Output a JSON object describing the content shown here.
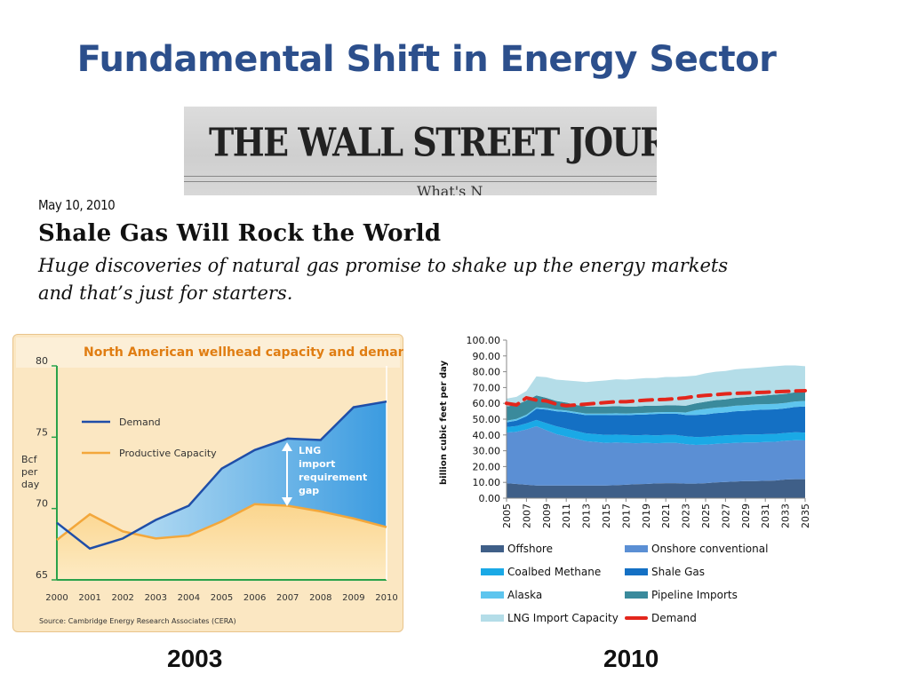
{
  "slide": {
    "title": "Fundamental Shift in Energy Sector"
  },
  "masthead": {
    "name": "THE WALL STREET JOURNAL.",
    "sub": "What's N"
  },
  "article": {
    "date": "May 10, 2010",
    "headline": "Shale Gas Will Rock the World",
    "deck": "Huge discoveries of natural gas promise to shake up the energy markets and that’s just for starters."
  },
  "captions": {
    "left": "2003",
    "right": "2010"
  },
  "colors": {
    "title": "#2c4f8c",
    "demand_2003": "#1f4ea8",
    "capacity_2003": "#f3a73b",
    "gap_fill": "#3b9be0",
    "offshore": "#3f5f88",
    "onshore": "#5b8fd4",
    "coalbed": "#1aa9e6",
    "shale": "#1470c4",
    "alaska": "#5ec5ee",
    "pipeline": "#3a8a9c",
    "lng": "#b4dde8",
    "demand_2010": "#e3261c"
  },
  "chart_data": [
    {
      "type": "area",
      "title": "North American wellhead capacity and demand",
      "x": [
        2000,
        2001,
        2002,
        2003,
        2004,
        2005,
        2006,
        2007,
        2008,
        2009,
        2010
      ],
      "x_ticks": [
        "2000",
        "2001",
        "2002",
        "2003",
        "2004",
        "2005",
        "2006",
        "2007",
        "2008",
        "2009",
        "2010"
      ],
      "y_ticks": [
        "65",
        "70",
        "75",
        "80"
      ],
      "ylim": [
        65,
        80
      ],
      "ylabel": "Bcf per day",
      "series": [
        {
          "name": "Demand",
          "values": [
            69.0,
            67.2,
            67.9,
            69.2,
            70.2,
            72.8,
            74.1,
            74.9,
            74.8,
            77.1,
            77.5
          ]
        },
        {
          "name": "Productive Capacity",
          "values": [
            67.8,
            69.6,
            68.4,
            67.9,
            68.1,
            69.1,
            70.3,
            70.2,
            69.8,
            69.3,
            68.7
          ]
        }
      ],
      "annotation": [
        "LNG",
        "import",
        "requirement",
        "gap"
      ],
      "source": "Source: Cambridge Energy Research Associates (CERA)"
    },
    {
      "type": "area",
      "stacked": true,
      "title": "",
      "ylabel": "billion cubic feet per day",
      "ylim": [
        0,
        100
      ],
      "y_ticks": [
        "0.00",
        "10.00",
        "20.00",
        "30.00",
        "40.00",
        "50.00",
        "60.00",
        "70.00",
        "80.00",
        "90.00",
        "100.00"
      ],
      "x_ticks": [
        "2005",
        "2007",
        "2009",
        "2011",
        "2013",
        "2015",
        "2017",
        "2019",
        "2021",
        "2023",
        "2025",
        "2027",
        "2029",
        "2031",
        "2033",
        "2035"
      ],
      "x": [
        2005,
        2006,
        2007,
        2008,
        2009,
        2010,
        2011,
        2012,
        2013,
        2014,
        2015,
        2016,
        2017,
        2018,
        2019,
        2020,
        2021,
        2022,
        2023,
        2024,
        2025,
        2026,
        2027,
        2028,
        2029,
        2030,
        2031,
        2032,
        2033,
        2034,
        2035
      ],
      "series": [
        {
          "name": "Offshore",
          "values": [
            9.5,
            9.0,
            8.5,
            8.0,
            8.0,
            8.0,
            8.0,
            8.0,
            8.0,
            8.0,
            8.0,
            8.2,
            8.5,
            8.8,
            9.0,
            9.3,
            9.5,
            9.5,
            9.2,
            9.2,
            9.5,
            10.0,
            10.2,
            10.5,
            10.8,
            10.8,
            11.0,
            11.2,
            11.8,
            12.0,
            12.0
          ]
        },
        {
          "name": "Onshore conventional",
          "values": [
            32.0,
            33.0,
            35.0,
            37.5,
            35.0,
            32.5,
            31.0,
            29.5,
            28.0,
            27.5,
            27.0,
            27.0,
            26.5,
            26.0,
            26.0,
            25.5,
            25.5,
            25.5,
            25.0,
            24.5,
            24.3,
            24.3,
            24.5,
            24.5,
            24.5,
            24.5,
            24.5,
            24.5,
            24.5,
            24.7,
            24.5
          ]
        },
        {
          "name": "Coalbed Methane",
          "values": [
            3.5,
            3.6,
            3.8,
            4.0,
            4.5,
            5.0,
            5.0,
            5.0,
            5.0,
            5.0,
            5.0,
            5.0,
            5.0,
            5.0,
            5.0,
            5.0,
            5.0,
            5.0,
            5.0,
            5.0,
            5.0,
            5.0,
            5.0,
            5.0,
            5.0,
            5.0,
            5.0,
            5.0,
            5.0,
            5.0,
            5.0
          ]
        },
        {
          "name": "Shale Gas",
          "values": [
            3.0,
            3.5,
            4.5,
            7.0,
            8.5,
            9.5,
            10.5,
            11.0,
            11.5,
            12.0,
            12.5,
            12.5,
            12.5,
            13.0,
            13.0,
            13.5,
            13.5,
            13.5,
            13.5,
            14.0,
            14.2,
            14.5,
            14.5,
            15.0,
            15.0,
            15.5,
            15.5,
            15.5,
            15.5,
            16.0,
            16.5
          ]
        },
        {
          "name": "Alaska",
          "values": [
            1.0,
            1.0,
            1.0,
            1.0,
            1.0,
            1.0,
            1.0,
            1.0,
            1.0,
            1.0,
            1.0,
            1.0,
            1.0,
            1.0,
            1.0,
            1.0,
            1.0,
            1.0,
            1.5,
            3.0,
            3.5,
            3.5,
            3.5,
            3.5,
            3.5,
            3.5,
            3.5,
            3.5,
            3.5,
            3.5,
            3.5
          ]
        },
        {
          "name": "Pipeline Imports",
          "values": [
            9.0,
            9.0,
            9.0,
            7.5,
            6.5,
            5.5,
            5.0,
            4.5,
            4.5,
            4.5,
            4.5,
            4.5,
            4.5,
            4.2,
            4.5,
            4.2,
            4.2,
            4.2,
            4.3,
            4.3,
            4.5,
            4.7,
            4.8,
            5.0,
            5.2,
            5.2,
            5.5,
            5.8,
            5.7,
            5.8,
            5.5
          ]
        },
        {
          "name": "LNG  Import Capacity",
          "values": [
            5.0,
            5.0,
            6.0,
            12.0,
            13.0,
            13.5,
            14.0,
            15.0,
            15.5,
            16.0,
            16.5,
            17.0,
            17.0,
            17.5,
            17.5,
            17.5,
            18.0,
            18.0,
            18.5,
            17.5,
            18.0,
            18.0,
            18.0,
            18.0,
            18.0,
            18.0,
            18.0,
            18.0,
            18.0,
            17.0,
            16.5
          ]
        }
      ],
      "demand": {
        "name": "Demand",
        "values": [
          60.0,
          59.0,
          63.5,
          62.0,
          61.5,
          59.5,
          58.5,
          59.0,
          59.5,
          60.0,
          60.5,
          61.0,
          61.0,
          61.5,
          62.0,
          62.3,
          62.5,
          63.0,
          63.5,
          64.5,
          65.0,
          65.5,
          66.0,
          66.3,
          66.5,
          66.8,
          67.0,
          67.3,
          67.5,
          67.8,
          68.0
        ]
      },
      "legend": [
        "Offshore",
        "Onshore conventional",
        "Coalbed Methane",
        "Shale Gas",
        "Alaska",
        "Pipeline Imports",
        "LNG  Import Capacity",
        "Demand"
      ]
    }
  ]
}
